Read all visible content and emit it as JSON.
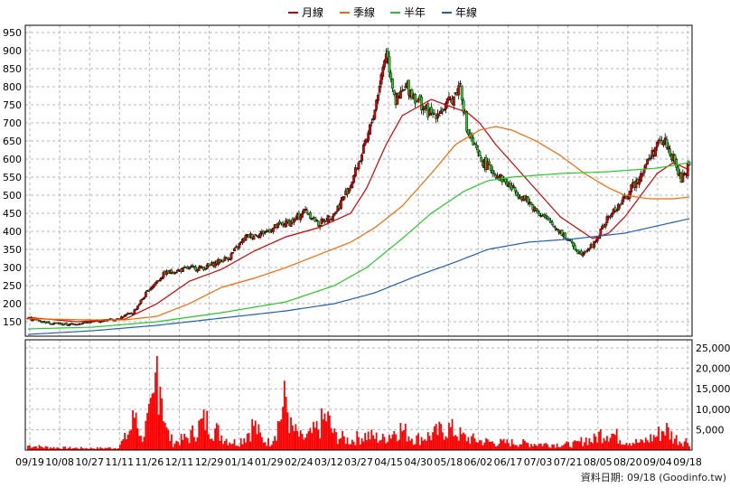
{
  "legend": [
    {
      "label": "月線",
      "color": "#d40000"
    },
    {
      "label": "季線",
      "color": "#ff6600"
    },
    {
      "label": "半年",
      "color": "#22cc22"
    },
    {
      "label": "年線",
      "color": "#1f5fbf"
    }
  ],
  "footer": "資料日期: 09/18 (Goodinfo.tw)",
  "chart_data": {
    "type": "candlestick",
    "price_ylim": [
      110,
      970
    ],
    "price_ticks": [
      150,
      200,
      250,
      300,
      350,
      400,
      450,
      500,
      550,
      600,
      650,
      700,
      750,
      800,
      850,
      900,
      950
    ],
    "volume_ylim": [
      0,
      27000
    ],
    "volume_ticks": [
      5000,
      10000,
      15000,
      20000,
      25000
    ],
    "volume_tick_labels": [
      "5,000",
      "10,000",
      "15,000",
      "20,000",
      "25,000"
    ],
    "x_tick_labels": [
      "09/19",
      "10/08",
      "10/27",
      "11/11",
      "11/26",
      "12/11",
      "12/29",
      "01/14",
      "01/29",
      "02/24",
      "03/12",
      "03/27",
      "04/15",
      "04/30",
      "05/18",
      "06/02",
      "06/17",
      "07/03",
      "07/21",
      "08/05",
      "08/20",
      "09/04",
      "09/18"
    ],
    "close_anchors": [
      [
        0,
        160
      ],
      [
        12,
        148
      ],
      [
        25,
        142
      ],
      [
        40,
        150
      ],
      [
        55,
        158
      ],
      [
        65,
        175
      ],
      [
        75,
        240
      ],
      [
        85,
        285
      ],
      [
        100,
        298
      ],
      [
        110,
        300
      ],
      [
        125,
        330
      ],
      [
        135,
        385
      ],
      [
        145,
        395
      ],
      [
        155,
        415
      ],
      [
        165,
        430
      ],
      [
        172,
        460
      ],
      [
        180,
        420
      ],
      [
        190,
        450
      ],
      [
        200,
        530
      ],
      [
        210,
        650
      ],
      [
        215,
        740
      ],
      [
        222,
        900
      ],
      [
        228,
        760
      ],
      [
        235,
        800
      ],
      [
        242,
        760
      ],
      [
        250,
        720
      ],
      [
        258,
        740
      ],
      [
        265,
        780
      ],
      [
        268,
        810
      ],
      [
        272,
        680
      ],
      [
        280,
        600
      ],
      [
        290,
        560
      ],
      [
        300,
        520
      ],
      [
        308,
        490
      ],
      [
        315,
        460
      ],
      [
        322,
        430
      ],
      [
        330,
        400
      ],
      [
        336,
        370
      ],
      [
        342,
        340
      ],
      [
        350,
        360
      ],
      [
        360,
        440
      ],
      [
        370,
        490
      ],
      [
        380,
        560
      ],
      [
        390,
        640
      ],
      [
        395,
        650
      ],
      [
        400,
        600
      ],
      [
        405,
        540
      ],
      [
        410,
        590
      ]
    ],
    "ma_series": [
      {
        "name": "月線",
        "color": "#d40000",
        "anchors": [
          [
            0,
            162
          ],
          [
            30,
            150
          ],
          [
            60,
            157
          ],
          [
            80,
            200
          ],
          [
            100,
            262
          ],
          [
            120,
            295
          ],
          [
            140,
            345
          ],
          [
            160,
            385
          ],
          [
            180,
            410
          ],
          [
            200,
            450
          ],
          [
            210,
            520
          ],
          [
            222,
            640
          ],
          [
            232,
            720
          ],
          [
            250,
            765
          ],
          [
            265,
            740
          ],
          [
            272,
            730
          ],
          [
            280,
            700
          ],
          [
            290,
            640
          ],
          [
            300,
            590
          ],
          [
            310,
            540
          ],
          [
            320,
            490
          ],
          [
            330,
            440
          ],
          [
            340,
            410
          ],
          [
            350,
            380
          ],
          [
            360,
            395
          ],
          [
            370,
            440
          ],
          [
            380,
            500
          ],
          [
            390,
            560
          ],
          [
            400,
            590
          ],
          [
            410,
            570
          ]
        ]
      },
      {
        "name": "季線",
        "color": "#ff6600",
        "anchors": [
          [
            0,
            158
          ],
          [
            40,
            155
          ],
          [
            60,
            155
          ],
          [
            80,
            165
          ],
          [
            100,
            200
          ],
          [
            120,
            245
          ],
          [
            140,
            270
          ],
          [
            160,
            300
          ],
          [
            180,
            335
          ],
          [
            200,
            370
          ],
          [
            215,
            410
          ],
          [
            232,
            470
          ],
          [
            250,
            560
          ],
          [
            265,
            640
          ],
          [
            280,
            680
          ],
          [
            290,
            690
          ],
          [
            300,
            680
          ],
          [
            315,
            650
          ],
          [
            330,
            610
          ],
          [
            345,
            560
          ],
          [
            360,
            520
          ],
          [
            370,
            500
          ],
          [
            385,
            490
          ],
          [
            400,
            490
          ],
          [
            410,
            495
          ]
        ]
      },
      {
        "name": "半年",
        "color": "#22cc22",
        "anchors": [
          [
            0,
            130
          ],
          [
            40,
            135
          ],
          [
            80,
            150
          ],
          [
            120,
            175
          ],
          [
            160,
            205
          ],
          [
            190,
            250
          ],
          [
            210,
            300
          ],
          [
            232,
            380
          ],
          [
            250,
            450
          ],
          [
            270,
            510
          ],
          [
            285,
            540
          ],
          [
            300,
            550
          ],
          [
            330,
            560
          ],
          [
            360,
            565
          ],
          [
            390,
            575
          ],
          [
            410,
            590
          ]
        ]
      },
      {
        "name": "年線",
        "color": "#1f5fbf",
        "anchors": [
          [
            0,
            115
          ],
          [
            40,
            125
          ],
          [
            80,
            140
          ],
          [
            120,
            160
          ],
          [
            160,
            180
          ],
          [
            190,
            200
          ],
          [
            215,
            230
          ],
          [
            240,
            275
          ],
          [
            265,
            315
          ],
          [
            285,
            350
          ],
          [
            310,
            370
          ],
          [
            340,
            380
          ],
          [
            370,
            395
          ],
          [
            395,
            420
          ],
          [
            410,
            435
          ]
        ]
      }
    ],
    "volume_anchors": [
      [
        0,
        1200
      ],
      [
        10,
        800
      ],
      [
        20,
        600
      ],
      [
        40,
        500
      ],
      [
        55,
        600
      ],
      [
        60,
        3000
      ],
      [
        64,
        6000
      ],
      [
        67,
        11000
      ],
      [
        70,
        3000
      ],
      [
        75,
        8000
      ],
      [
        78,
        12000
      ],
      [
        80,
        24000
      ],
      [
        82,
        22000
      ],
      [
        84,
        12000
      ],
      [
        86,
        5000
      ],
      [
        90,
        2000
      ],
      [
        100,
        3500
      ],
      [
        105,
        6000
      ],
      [
        110,
        8000
      ],
      [
        115,
        6000
      ],
      [
        120,
        4000
      ],
      [
        125,
        2500
      ],
      [
        130,
        2000
      ],
      [
        135,
        4000
      ],
      [
        140,
        7000
      ],
      [
        145,
        3000
      ],
      [
        150,
        2000
      ],
      [
        155,
        7000
      ],
      [
        160,
        14000
      ],
      [
        163,
        6000
      ],
      [
        170,
        3000
      ],
      [
        175,
        4000
      ],
      [
        180,
        6000
      ],
      [
        185,
        9000
      ],
      [
        190,
        4000
      ],
      [
        200,
        2500
      ],
      [
        205,
        3500
      ],
      [
        210,
        4000
      ],
      [
        220,
        3000
      ],
      [
        230,
        6000
      ],
      [
        240,
        3000
      ],
      [
        250,
        4000
      ],
      [
        260,
        6000
      ],
      [
        265,
        5000
      ],
      [
        270,
        3500
      ],
      [
        280,
        2500
      ],
      [
        290,
        2000
      ],
      [
        300,
        2000
      ],
      [
        320,
        1600
      ],
      [
        335,
        1500
      ],
      [
        340,
        1700
      ],
      [
        346,
        3000
      ],
      [
        350,
        2500
      ],
      [
        355,
        4500
      ],
      [
        360,
        5000
      ],
      [
        370,
        2500
      ],
      [
        380,
        2000
      ],
      [
        390,
        4000
      ],
      [
        395,
        6000
      ],
      [
        400,
        3500
      ],
      [
        405,
        2500
      ],
      [
        410,
        2500
      ]
    ]
  }
}
